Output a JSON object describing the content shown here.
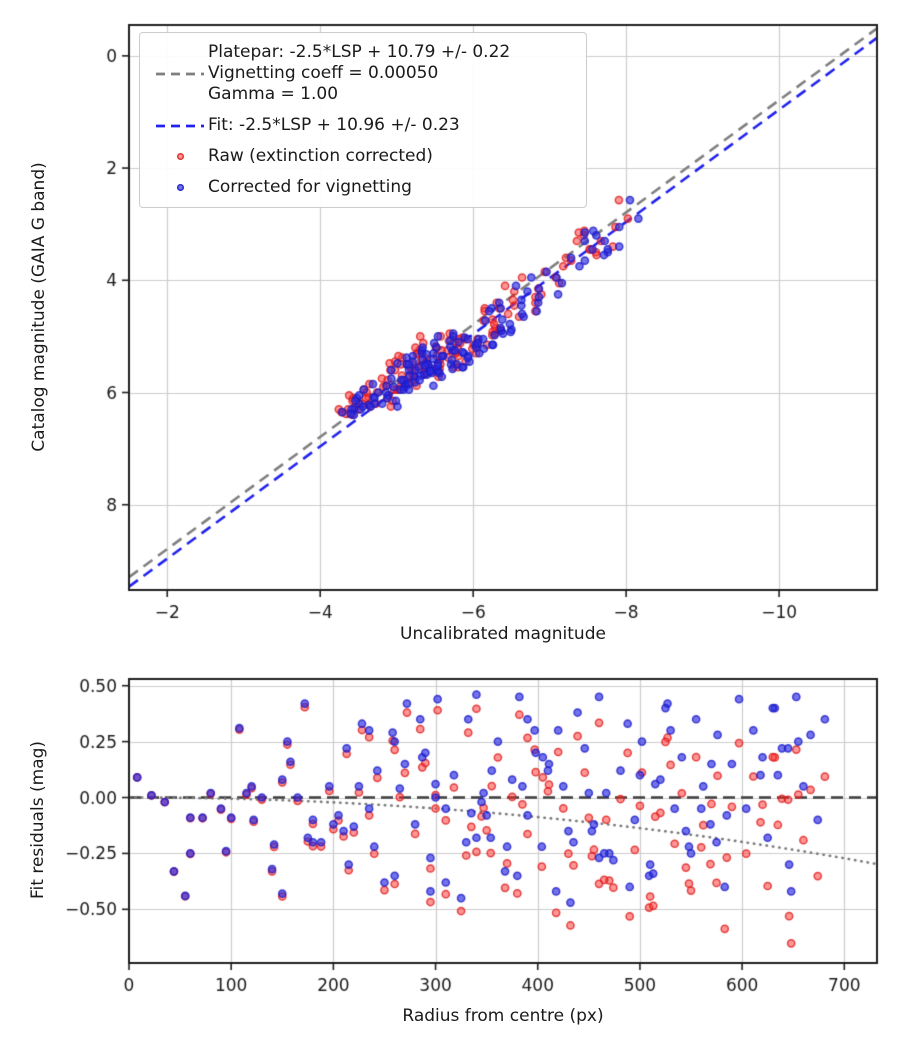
{
  "figure": {
    "background": "#ffffff"
  },
  "colors": {
    "grid": "#cccccc",
    "spine": "#1f1f1f",
    "text": "#1a1a1a",
    "platepar_line": "#7f7f7f",
    "fit_line": "#2222ee",
    "zero_line": "#3d3d3d",
    "vignetting_dotted": "#7a7a7a",
    "raw_fill": "rgba(255,45,45,0.50)",
    "raw_edge": "rgba(222,24,24,0.78)",
    "corrected_fill": "rgba(43,43,226,0.66)",
    "corrected_edge": "rgba(25,25,200,0.78)"
  },
  "legend": {
    "platepar_lines": [
      "Platepar: -2.5*LSP + 10.79 +/- 0.22",
      "Vignetting coeff = 0.00050",
      "Gamma = 1.00"
    ],
    "fit_label": "Fit: -2.5*LSP + 10.96 +/- 0.23",
    "raw_label": "Raw (extinction corrected)",
    "corrected_label": "Corrected for vignetting"
  },
  "fit": {
    "platepar_intercept": 10.79,
    "platepar_uncertainty": 0.22,
    "fit_intercept": 10.96,
    "fit_uncertainty": 0.23,
    "slope_term": "-2.5*LSP",
    "vignetting_coeff": 0.0005,
    "gamma": 1.0
  },
  "chart_data": [
    {
      "id": "magnitude-calibration",
      "type": "scatter",
      "xlabel": "Uncalibrated magnitude",
      "ylabel": "Catalog magnitude (GAIA G band)",
      "xlim": [
        -1.5,
        -11.28
      ],
      "ylim_top_to_bottom": [
        -0.55,
        9.52
      ],
      "grid": true,
      "legend_position": "upper left",
      "xticks": [
        {
          "v": -2,
          "label": "−2"
        },
        {
          "v": -4,
          "label": "−4"
        },
        {
          "v": -6,
          "label": "−6"
        },
        {
          "v": -8,
          "label": "−8"
        },
        {
          "v": -10,
          "label": "−10"
        }
      ],
      "yticks": [
        {
          "v": 0,
          "label": "0"
        },
        {
          "v": 2,
          "label": "2"
        },
        {
          "v": 4,
          "label": "4"
        },
        {
          "v": 6,
          "label": "6"
        },
        {
          "v": 8,
          "label": "8"
        }
      ],
      "lines": [
        {
          "name": "platepar",
          "slope": 1,
          "intercept": 10.79,
          "style": "dashed",
          "colorKey": "platepar_line"
        },
        {
          "name": "fit",
          "slope": 1,
          "intercept": 10.96,
          "style": "dashed",
          "colorKey": "fit_line"
        }
      ],
      "series": [
        {
          "name": "Raw (extinction corrected)",
          "fillKey": "raw_fill",
          "edgeKey": "raw_edge"
        },
        {
          "name": "Corrected for vignetting",
          "fillKey": "corrected_fill",
          "edgeKey": "corrected_edge"
        }
      ]
    },
    {
      "id": "fit-residuals",
      "type": "scatter",
      "xlabel": "Radius from centre (px)",
      "ylabel": "Fit residuals (mag)",
      "xlim": [
        0,
        732
      ],
      "ylim_top_to_bottom": [
        0.53,
        -0.74
      ],
      "grid": true,
      "xticks": [
        {
          "v": 0,
          "label": "0"
        },
        {
          "v": 100,
          "label": "100"
        },
        {
          "v": 200,
          "label": "200"
        },
        {
          "v": 300,
          "label": "300"
        },
        {
          "v": 400,
          "label": "400"
        },
        {
          "v": 500,
          "label": "500"
        },
        {
          "v": 600,
          "label": "600"
        },
        {
          "v": 700,
          "label": "700"
        }
      ],
      "yticks": [
        {
          "v": 0.5,
          "label": "0.50"
        },
        {
          "v": 0.25,
          "label": "0.25"
        },
        {
          "v": 0,
          "label": "0.00"
        },
        {
          "v": -0.25,
          "label": "−0.25"
        },
        {
          "v": -0.5,
          "label": "−0.50"
        }
      ],
      "lines": [
        {
          "name": "zero-residual",
          "type": "hline",
          "y": 0,
          "style": "dashed",
          "colorKey": "zero_line"
        },
        {
          "name": "vignetting-curve",
          "type": "vignetting",
          "coeff": 0.0005,
          "style": "dotted",
          "colorKey": "vignetting_dotted"
        }
      ],
      "series": [
        {
          "name": "Raw (extinction corrected)",
          "fillKey": "raw_fill",
          "edgeKey": "raw_edge"
        },
        {
          "name": "Corrected for vignetting",
          "fillKey": "corrected_fill",
          "edgeKey": "corrected_edge"
        }
      ]
    }
  ],
  "stars": {
    "format": "[radius_px, corrected_residual_mag, catalog_mag]; raw residual = corrected − vignetting_corr(r); uncal_mag(corrected) = catalog − 10.96 − residual",
    "points": [
      [
        8,
        0.09,
        5.62
      ],
      [
        22,
        0.01,
        5.85
      ],
      [
        35,
        -0.02,
        6.05
      ],
      [
        44,
        -0.33,
        5.3
      ],
      [
        55,
        -0.44,
        5.95
      ],
      [
        60,
        -0.09,
        5.48
      ],
      [
        72,
        -0.09,
        5.7
      ],
      [
        80,
        0.02,
        6.1
      ],
      [
        95,
        -0.24,
        5.2
      ],
      [
        100,
        -0.09,
        5.78
      ],
      [
        108,
        0.31,
        4.9
      ],
      [
        115,
        0.02,
        5.55
      ],
      [
        122,
        -0.1,
        6.22
      ],
      [
        130,
        0,
        5.35
      ],
      [
        142,
        -0.21,
        5.88
      ],
      [
        150,
        -0.43,
        5.6
      ],
      [
        158,
        0.16,
        5.05
      ],
      [
        165,
        0,
        5.72
      ],
      [
        172,
        0.42,
        4.55
      ],
      [
        180,
        -0.2,
        6.0
      ],
      [
        188,
        -0.2,
        5.42
      ],
      [
        196,
        0.05,
        5.9
      ],
      [
        205,
        -0.08,
        4.72
      ],
      [
        213,
        0.22,
        5.15
      ],
      [
        220,
        -0.13,
        6.3
      ],
      [
        228,
        0.33,
        5.5
      ],
      [
        235,
        -0.05,
        5.02
      ],
      [
        243,
        0.12,
        5.68
      ],
      [
        250,
        -0.38,
        5.25
      ],
      [
        258,
        0.29,
        4.4
      ],
      [
        265,
        0.04,
        5.95
      ],
      [
        272,
        0.42,
        5.3
      ],
      [
        280,
        -0.12,
        5.6
      ],
      [
        287,
        0.18,
        6.15
      ],
      [
        295,
        -0.27,
        4.95
      ],
      [
        302,
        0.44,
        5.45
      ],
      [
        310,
        -0.05,
        5.1
      ],
      [
        318,
        0.1,
        5.82
      ],
      [
        325,
        -0.45,
        5.38
      ],
      [
        332,
        0.35,
        4.65
      ],
      [
        340,
        0.46,
        5.55
      ],
      [
        347,
        0.02,
        5.25
      ],
      [
        354,
        -0.18,
        6.08
      ],
      [
        361,
        0.25,
        4.85
      ],
      [
        368,
        -0.33,
        5.5
      ],
      [
        375,
        0.08,
        5.95
      ],
      [
        382,
        0.45,
        5.15
      ],
      [
        390,
        -0.08,
        5.4
      ],
      [
        397,
        0.3,
        6.25
      ],
      [
        404,
        -0.22,
        4.5
      ],
      [
        411,
        0.15,
        5.65
      ],
      [
        418,
        -0.42,
        5.2
      ],
      [
        425,
        0.05,
        5.85
      ],
      [
        432,
        -0.47,
        5.48
      ],
      [
        439,
        0.38,
        4.95
      ],
      [
        446,
        0.22,
        5.3
      ],
      [
        453,
        -0.15,
        6.1
      ],
      [
        460,
        0.45,
        5.55
      ],
      [
        467,
        0.02,
        5.05
      ],
      [
        474,
        -0.28,
        5.75
      ],
      [
        481,
        0.12,
        4.7
      ],
      [
        488,
        0.33,
        5.35
      ],
      [
        495,
        -0.1,
        5.9
      ],
      [
        502,
        0.25,
        5.5
      ],
      [
        509,
        -0.35,
        5.12
      ],
      [
        513,
        -0.34,
        2.57
      ],
      [
        520,
        0.08,
        5.68
      ],
      [
        527,
        0.42,
        4.88
      ],
      [
        534,
        -0.05,
        6.2
      ],
      [
        541,
        0.18,
        5.42
      ],
      [
        548,
        -0.22,
        5.0
      ],
      [
        555,
        0.35,
        5.58
      ],
      [
        562,
        0.05,
        5.25
      ],
      [
        569,
        -0.12,
        5.78
      ],
      [
        576,
        0.28,
        4.6
      ],
      [
        583,
        -0.4,
        5.35
      ],
      [
        590,
        0.15,
        5.95
      ],
      [
        597,
        0.44,
        5.15
      ],
      [
        604,
        -0.05,
        5.5
      ],
      [
        611,
        0.3,
        4.78
      ],
      [
        618,
        0.1,
        5.62
      ],
      [
        625,
        -0.18,
        5.3
      ],
      [
        632,
        0.4,
        5.88
      ],
      [
        639,
        0.22,
        5.05
      ],
      [
        646,
        -0.3,
        5.45
      ],
      [
        648,
        -0.42,
        5.0
      ],
      [
        653,
        0.45,
        4.92
      ],
      [
        660,
        0.05,
        5.7
      ],
      [
        667,
        0.28,
        5.2
      ],
      [
        674,
        -0.1,
        6.0
      ],
      [
        681,
        0.35,
        5.38
      ],
      [
        120,
        0.05,
        4.15
      ],
      [
        210,
        -0.15,
        3.85
      ],
      [
        290,
        0.2,
        4.3
      ],
      [
        350,
        -0.08,
        3.6
      ],
      [
        410,
        0.12,
        4.45
      ],
      [
        470,
        -0.25,
        3.95
      ],
      [
        530,
        0.3,
        3.5
      ],
      [
        560,
        -0.05,
        4.2
      ],
      [
        300,
        0.06,
        3.3
      ],
      [
        620,
        0.18,
        3.75
      ],
      [
        180,
        -0.1,
        4.5
      ],
      [
        260,
        0.25,
        4.05
      ],
      [
        330,
        -0.2,
        4.55
      ],
      [
        390,
        0.35,
        3.4
      ],
      [
        450,
        0.02,
        4.35
      ],
      [
        510,
        -0.3,
        4.1
      ],
      [
        570,
        0.15,
        3.65
      ],
      [
        630,
        0.4,
        4.25
      ],
      [
        150,
        0.08,
        3.95
      ],
      [
        240,
        -0.22,
        4.4
      ],
      [
        460,
        -0.27,
        3.12
      ],
      [
        435,
        -0.2,
        3.3
      ],
      [
        500,
        0.1,
        2.9
      ],
      [
        545,
        -0.15,
        3.2
      ],
      [
        300,
        0,
        3.05
      ],
      [
        655,
        0.25,
        3.45
      ],
      [
        380,
        -0.35,
        3.15
      ],
      [
        420,
        0.3,
        3.55
      ],
      [
        225,
        0.05,
        3.45
      ],
      [
        60,
        -0.25,
        6.2
      ],
      [
        140,
        -0.32,
        6.35
      ],
      [
        310,
        -0.38,
        6.1
      ],
      [
        370,
        -0.22,
        6.3
      ],
      [
        430,
        -0.15,
        6.25
      ],
      [
        490,
        -0.4,
        6.05
      ],
      [
        550,
        -0.25,
        6.3
      ],
      [
        200,
        -0.12,
        6.4
      ],
      [
        260,
        -0.35,
        6.15
      ],
      [
        340,
        -0.18,
        6.38
      ],
      [
        90,
        -0.05,
        6.25
      ],
      [
        385,
        0.05,
        6.2
      ],
      [
        270,
        0.15,
        5.58
      ],
      [
        335,
        -0.07,
        5.52
      ],
      [
        398,
        0.2,
        5.62
      ],
      [
        455,
        -0.12,
        5.55
      ],
      [
        515,
        0.06,
        5.48
      ],
      [
        575,
        -0.2,
        5.6
      ],
      [
        635,
        0.1,
        5.52
      ],
      [
        155,
        0.25,
        5.65
      ],
      [
        215,
        -0.3,
        5.5
      ],
      [
        285,
        0.35,
        5.72
      ],
      [
        345,
        -0.02,
        5.35
      ],
      [
        405,
        0.18,
        5.28
      ],
      [
        465,
        -0.25,
        5.32
      ],
      [
        525,
        0.4,
        5.22
      ],
      [
        585,
        -0.08,
        5.18
      ],
      [
        645,
        0.22,
        5.12
      ],
      [
        175,
        -0.18,
        5.08
      ],
      [
        235,
        0.3,
        4.98
      ],
      [
        295,
        -0.42,
        5.85
      ],
      [
        355,
        0.12,
        5.78
      ]
    ]
  }
}
